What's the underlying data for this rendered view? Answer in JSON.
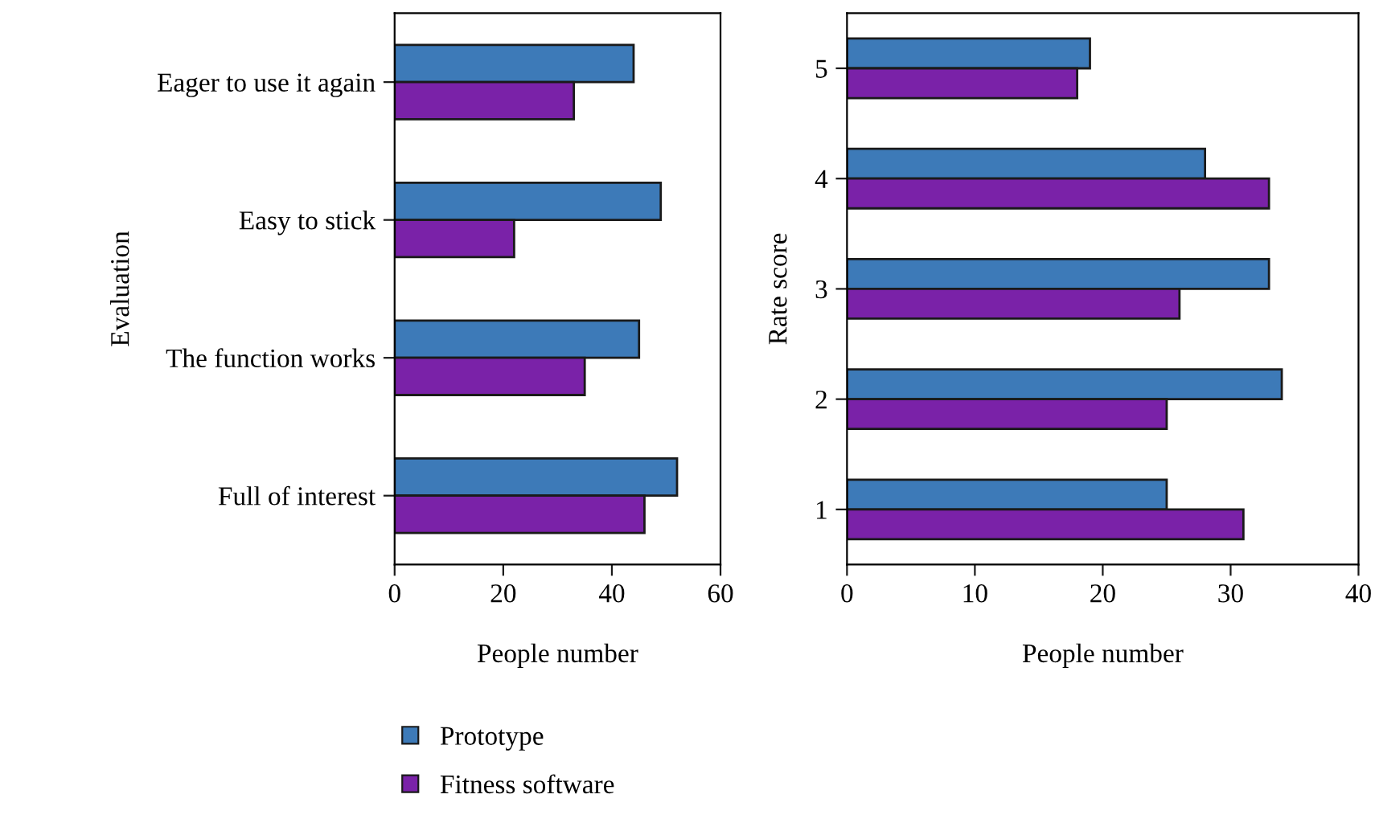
{
  "chart_data": [
    {
      "type": "bar",
      "orientation": "horizontal",
      "categories": [
        "Eager to use it again",
        "Easy to stick",
        "The function works",
        "Full of interest"
      ],
      "xlabel": "People number",
      "ylabel": "Evaluation",
      "xlim": [
        0,
        60
      ],
      "xticks": [
        0,
        20,
        40,
        60
      ],
      "grid": false,
      "legend": "bottom",
      "series": [
        {
          "name": "Prototype",
          "color": "#3d7ab8",
          "values": [
            44,
            49,
            45,
            52
          ]
        },
        {
          "name": "Fitness software",
          "color": "#7a22a8",
          "values": [
            33,
            22,
            35,
            46
          ]
        }
      ]
    },
    {
      "type": "bar",
      "orientation": "horizontal",
      "categories": [
        "5",
        "4",
        "3",
        "2",
        "1"
      ],
      "xlabel": "People number",
      "ylabel": "Rate score",
      "xlim": [
        0,
        40
      ],
      "xticks": [
        0,
        10,
        20,
        30,
        40
      ],
      "grid": false,
      "legend": false,
      "series": [
        {
          "color": "#3d7ab8",
          "values": [
            19,
            28,
            33,
            34,
            25
          ]
        },
        {
          "color": "#7a22a8",
          "values": [
            18,
            33,
            26,
            25,
            31
          ]
        }
      ]
    }
  ]
}
